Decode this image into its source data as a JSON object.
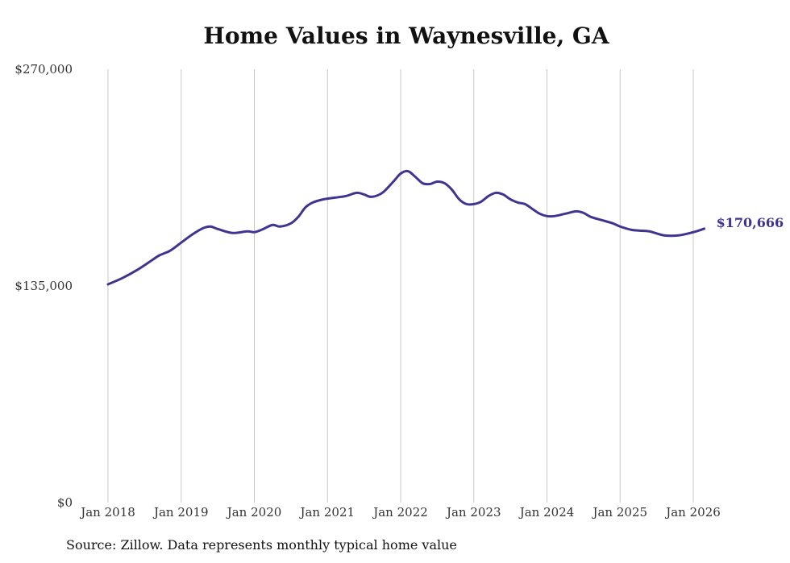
{
  "chart_data": {
    "type": "line",
    "title": "Home Values in Waynesville, GA",
    "source": "Source: Zillow. Data represents monthly typical home value",
    "xlabel": "",
    "ylabel": "",
    "ylim": [
      0,
      270000
    ],
    "y_ticks": [
      {
        "value": 0,
        "label": "$0"
      },
      {
        "value": 135000,
        "label": "$135,000"
      },
      {
        "value": 270000,
        "label": "$270,000"
      }
    ],
    "x_ticks": [
      {
        "value": 2018,
        "label": "Jan 2018"
      },
      {
        "value": 2019,
        "label": "Jan 2019"
      },
      {
        "value": 2020,
        "label": "Jan 2020"
      },
      {
        "value": 2021,
        "label": "Jan 2021"
      },
      {
        "value": 2022,
        "label": "Jan 2022"
      },
      {
        "value": 2023,
        "label": "Jan 2023"
      },
      {
        "value": 2024,
        "label": "Jan 2024"
      },
      {
        "value": 2025,
        "label": "Jan 2025"
      },
      {
        "value": 2026,
        "label": "Jan 2026"
      }
    ],
    "xlim": [
      2018,
      2026
    ],
    "vertical_grid": true,
    "line_color": "#3f3590",
    "end_label": "$170,666",
    "series": [
      {
        "name": "Typical home value",
        "x": [
          2018.0,
          2018.2,
          2018.4,
          2018.6,
          2018.7,
          2018.85,
          2019.0,
          2019.15,
          2019.3,
          2019.4,
          2019.5,
          2019.7,
          2019.9,
          2020.0,
          2020.1,
          2020.25,
          2020.35,
          2020.5,
          2020.6,
          2020.7,
          2020.8,
          2020.95,
          2021.1,
          2021.25,
          2021.4,
          2021.5,
          2021.6,
          2021.75,
          2021.9,
          2022.0,
          2022.1,
          2022.2,
          2022.3,
          2022.4,
          2022.5,
          2022.6,
          2022.7,
          2022.8,
          2022.9,
          2023.0,
          2023.1,
          2023.2,
          2023.3,
          2023.4,
          2023.5,
          2023.6,
          2023.7,
          2023.8,
          2023.9,
          2024.0,
          2024.1,
          2024.25,
          2024.4,
          2024.5,
          2024.6,
          2024.75,
          2024.9,
          2025.0,
          2025.15,
          2025.25,
          2025.4,
          2025.6,
          2025.8,
          2026.0,
          2026.15
        ],
        "values": [
          136000,
          140000,
          145000,
          151000,
          154000,
          157000,
          162000,
          167000,
          171000,
          172000,
          170500,
          168000,
          169000,
          168500,
          170000,
          173000,
          172000,
          174000,
          178000,
          184000,
          187000,
          189000,
          190000,
          191000,
          193000,
          192000,
          190500,
          193000,
          200000,
          205000,
          206500,
          203000,
          199000,
          198500,
          200000,
          199000,
          195000,
          189000,
          186000,
          186000,
          187500,
          191000,
          193000,
          192000,
          189000,
          187000,
          186000,
          183000,
          180000,
          178500,
          178500,
          180000,
          181500,
          180500,
          178000,
          176000,
          174000,
          172000,
          170000,
          169500,
          169000,
          166500,
          166500,
          168500,
          170666
        ]
      }
    ]
  }
}
